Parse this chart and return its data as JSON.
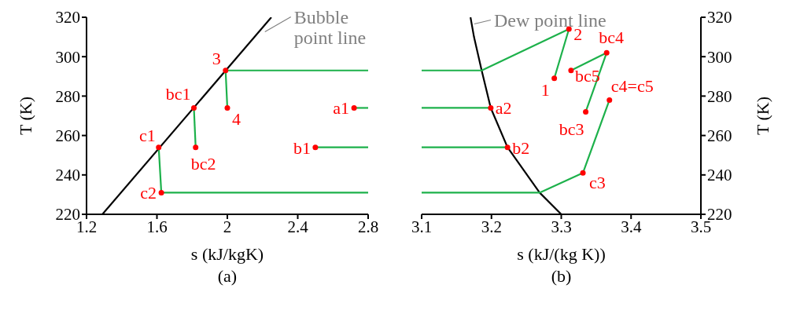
{
  "chart_data": [
    {
      "type": "line",
      "title": "(a)",
      "xlabel": "s (kJ/kgK)",
      "ylabel": "T (K)",
      "xlim": [
        1.2,
        2.8
      ],
      "xticks": [
        1.2,
        1.6,
        2,
        2.4,
        2.8
      ],
      "ylim": [
        220,
        320
      ],
      "yticks": [
        220,
        240,
        260,
        280,
        300,
        320
      ],
      "marker": "none",
      "series": [
        {
          "color": "#000000",
          "x": [
            1.29,
            2.25
          ],
          "values": [
            220,
            320
          ]
        },
        {
          "color": "#1db14b",
          "x": [
            2.8,
            1.99,
            2.0
          ],
          "values": [
            293,
            293,
            274
          ]
        },
        {
          "color": "#1db14b",
          "x": [
            1.81,
            1.82
          ],
          "values": [
            274,
            254
          ]
        },
        {
          "color": "#1db14b",
          "x": [
            1.61,
            1.625,
            2.8
          ],
          "values": [
            254,
            231,
            231
          ]
        },
        {
          "color": "#1db14b",
          "x": [
            2.72,
            2.8
          ],
          "values": [
            274,
            274
          ]
        },
        {
          "color": "#1db14b",
          "x": [
            2.5,
            2.8
          ],
          "values": [
            254,
            254
          ]
        },
        {
          "type": "scatter",
          "marker": "circle",
          "color": "#ff0000",
          "x": [
            1.99,
            2.0,
            1.81,
            1.82,
            1.61,
            1.625,
            2.72,
            2.5
          ],
          "values": [
            293,
            274,
            274,
            254,
            254,
            231,
            274,
            254
          ]
        }
      ],
      "annotations": [
        {
          "text": "3",
          "x": 1.99,
          "y": 293
        },
        {
          "text": "4",
          "x": 2.0,
          "y": 274
        },
        {
          "text": "bc1",
          "x": 1.81,
          "y": 274
        },
        {
          "text": "bc2",
          "x": 1.82,
          "y": 254
        },
        {
          "text": "c1",
          "x": 1.61,
          "y": 254
        },
        {
          "text": "c2",
          "x": 1.625,
          "y": 231
        },
        {
          "text": "a1",
          "x": 2.72,
          "y": 274
        },
        {
          "text": "b1",
          "x": 2.5,
          "y": 254
        },
        {
          "text": "Bubble point line",
          "x": 2.2,
          "y": 313
        }
      ]
    },
    {
      "type": "line",
      "title": "(b)",
      "xlabel": "s (kJ/(kg K))",
      "ylabel": "T (K)",
      "xlim": [
        3.1,
        3.5
      ],
      "xticks": [
        3.1,
        3.2,
        3.3,
        3.4,
        3.5
      ],
      "ylim": [
        220,
        320
      ],
      "yticks": [
        220,
        240,
        260,
        280,
        300,
        320
      ],
      "marker": "none",
      "series": [
        {
          "color": "#000000",
          "x": [
            3.17,
            3.175,
            3.186,
            3.199,
            3.223,
            3.269,
            3.3
          ],
          "values": [
            320,
            310,
            293,
            274,
            254,
            231,
            220
          ]
        },
        {
          "color": "#1db14b",
          "x": [
            3.1,
            3.186,
            3.311,
            3.29
          ],
          "values": [
            293,
            293,
            314,
            289
          ]
        },
        {
          "color": "#1db14b",
          "x": [
            3.314,
            3.365,
            3.335
          ],
          "values": [
            293,
            302,
            272
          ]
        },
        {
          "color": "#1db14b",
          "x": [
            3.1,
            3.269,
            3.331,
            3.369
          ],
          "values": [
            231,
            231,
            241,
            278
          ]
        },
        {
          "color": "#1db14b",
          "x": [
            3.1,
            3.199
          ],
          "values": [
            274,
            274
          ]
        },
        {
          "color": "#1db14b",
          "x": [
            3.1,
            3.223
          ],
          "values": [
            254,
            254
          ]
        },
        {
          "type": "scatter",
          "marker": "circle",
          "color": "#ff0000",
          "x": [
            3.311,
            3.29,
            3.365,
            3.314,
            3.335,
            3.369,
            3.331,
            3.199,
            3.223
          ],
          "values": [
            314,
            289,
            302,
            293,
            272,
            278,
            241,
            274,
            254
          ]
        }
      ],
      "annotations": [
        {
          "text": "2",
          "x": 3.311,
          "y": 314
        },
        {
          "text": "1",
          "x": 3.29,
          "y": 289
        },
        {
          "text": "bc4",
          "x": 3.365,
          "y": 302
        },
        {
          "text": "bc5",
          "x": 3.314,
          "y": 293
        },
        {
          "text": "bc3",
          "x": 3.335,
          "y": 272
        },
        {
          "text": "c4=c5",
          "x": 3.369,
          "y": 278
        },
        {
          "text": "c3",
          "x": 3.331,
          "y": 241
        },
        {
          "text": "a2",
          "x": 3.199,
          "y": 274
        },
        {
          "text": "b2",
          "x": 3.223,
          "y": 254
        },
        {
          "text": "Dew point line",
          "x": 3.172,
          "y": 317
        }
      ]
    }
  ]
}
